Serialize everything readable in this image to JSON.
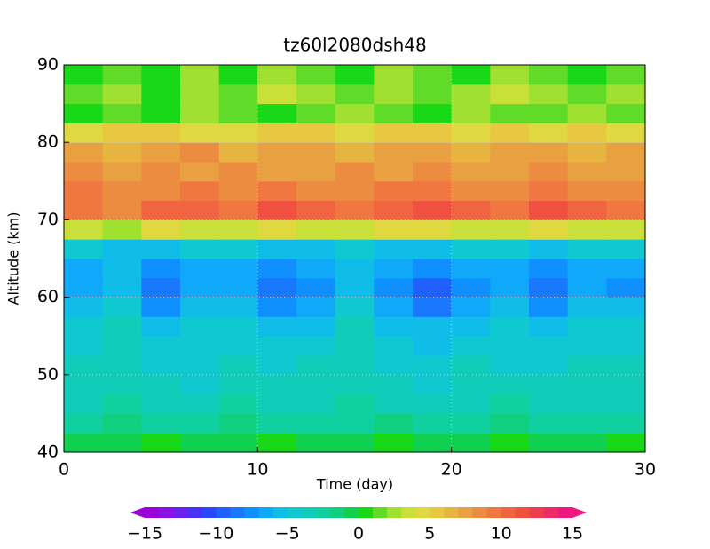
{
  "chart_data": {
    "type": "heatmap",
    "title": "tz60l2080dsh48",
    "x_label": "Time (day)",
    "y_label": "Altitude (km)",
    "x": [
      1,
      3,
      5,
      7,
      9,
      11,
      13,
      15,
      17,
      19,
      21,
      23,
      25,
      27,
      29
    ],
    "y": [
      41.25,
      43.75,
      46.25,
      48.75,
      51.25,
      53.75,
      56.25,
      58.75,
      61.25,
      63.75,
      66.25,
      68.75,
      71.25,
      73.75,
      76.25,
      78.75,
      81.25,
      83.75,
      86.25,
      88.75
    ],
    "z": [
      [
        -1,
        -1,
        0,
        -1,
        -1,
        0,
        -1,
        -1,
        0,
        -1,
        -1,
        0,
        -1,
        -1,
        0
      ],
      [
        -3,
        -2,
        -3,
        -3,
        -2,
        -3,
        -3,
        -3,
        -2,
        -3,
        -3,
        -2,
        -3,
        -3,
        -3
      ],
      [
        -4,
        -3,
        -4,
        -4,
        -3,
        -4,
        -4,
        -3,
        -4,
        -4,
        -4,
        -3,
        -4,
        -4,
        -4
      ],
      [
        -4,
        -4,
        -4,
        -5,
        -4,
        -4,
        -4,
        -4,
        -4,
        -5,
        -4,
        -4,
        -4,
        -4,
        -4
      ],
      [
        -4,
        -4,
        -5,
        -5,
        -4,
        -5,
        -4,
        -4,
        -5,
        -5,
        -4,
        -5,
        -5,
        -4,
        -4
      ],
      [
        -5,
        -4,
        -5,
        -5,
        -5,
        -5,
        -5,
        -4,
        -5,
        -6,
        -5,
        -5,
        -5,
        -5,
        -5
      ],
      [
        -5,
        -4,
        -6,
        -5,
        -5,
        -6,
        -6,
        -4,
        -6,
        -6,
        -6,
        -5,
        -6,
        -5,
        -5
      ],
      [
        -6,
        -5,
        -8,
        -6,
        -6,
        -8,
        -7,
        -5,
        -7,
        -9,
        -7,
        -6,
        -8,
        -6,
        -6
      ],
      [
        -7,
        -6,
        -9,
        -7,
        -7,
        -9,
        -8,
        -6,
        -8,
        -10,
        -8,
        -7,
        -9,
        -7,
        -8
      ],
      [
        -7,
        -6,
        -8,
        -7,
        -7,
        -8,
        -7,
        -6,
        -7,
        -8,
        -7,
        -7,
        -8,
        -7,
        -7
      ],
      [
        -5,
        -6,
        -6,
        -5,
        -5,
        -6,
        -6,
        -5,
        -6,
        -6,
        -5,
        -5,
        -6,
        -5,
        -5
      ],
      [
        3,
        2,
        4,
        3,
        3,
        4,
        3,
        3,
        4,
        4,
        3,
        3,
        4,
        3,
        3
      ],
      [
        9,
        8,
        10,
        10,
        9,
        11,
        10,
        9,
        10,
        11,
        10,
        9,
        11,
        10,
        9
      ],
      [
        9,
        8,
        8,
        9,
        8,
        9,
        8,
        8,
        9,
        9,
        8,
        8,
        9,
        8,
        8
      ],
      [
        8,
        7,
        8,
        7,
        8,
        7,
        7,
        8,
        7,
        8,
        7,
        7,
        8,
        7,
        7
      ],
      [
        7,
        6,
        7,
        8,
        6,
        7,
        7,
        6,
        7,
        7,
        6,
        7,
        7,
        6,
        7
      ],
      [
        4,
        5,
        5,
        4,
        4,
        5,
        5,
        4,
        5,
        5,
        4,
        5,
        4,
        5,
        4
      ],
      [
        0,
        1,
        0,
        2,
        1,
        0,
        1,
        2,
        1,
        0,
        2,
        1,
        1,
        2,
        1
      ],
      [
        1,
        2,
        0,
        2,
        1,
        3,
        2,
        1,
        2,
        1,
        2,
        3,
        2,
        1,
        2
      ],
      [
        0,
        1,
        0,
        2,
        0,
        2,
        1,
        0,
        2,
        1,
        0,
        2,
        1,
        0,
        1
      ]
    ],
    "xlim": [
      0,
      30
    ],
    "xticks": [
      0,
      10,
      20,
      30
    ],
    "ylim": [
      40,
      90
    ],
    "yticks": [
      40,
      50,
      60,
      70,
      80,
      90
    ],
    "grid": true,
    "colorbar": {
      "levels": [
        -15,
        -14,
        -13,
        -12,
        -11,
        -10,
        -9,
        -8,
        -7,
        -6,
        -5,
        -4,
        -3,
        -2,
        -1,
        0,
        1,
        2,
        3,
        4,
        5,
        6,
        7,
        8,
        9,
        10,
        11,
        12,
        13,
        14,
        15
      ],
      "colors": [
        "#9a00d8",
        "#8a10e8",
        "#6a20f0",
        "#4830f8",
        "#2848ff",
        "#2060ff",
        "#1a78ff",
        "#1090ff",
        "#10a8f8",
        "#10bce8",
        "#10c8d0",
        "#10ccb8",
        "#10d0a0",
        "#10d080",
        "#10d050",
        "#18d818",
        "#60dc28",
        "#a0e030",
        "#c8e038",
        "#e0d840",
        "#e8c840",
        "#e8b440",
        "#e8a040",
        "#ec8c40",
        "#f07840",
        "#f06440",
        "#f05040",
        "#f03c50",
        "#f02a68",
        "#f01880"
      ],
      "ticks": [
        {
          "value": -15,
          "label": "−15"
        },
        {
          "value": -10,
          "label": "−10"
        },
        {
          "value": -5,
          "label": "−5"
        },
        0,
        5,
        10,
        15
      ]
    }
  }
}
